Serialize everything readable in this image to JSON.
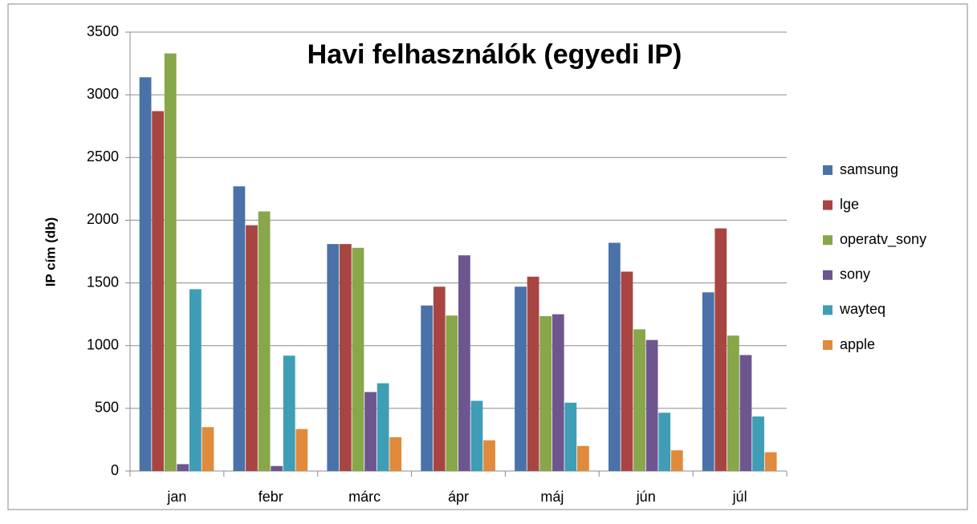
{
  "chart_data": {
    "type": "bar",
    "title": "Havi  felhasználók (egyedi IP)",
    "y_label": "IP cím (db)",
    "categories": [
      "jan",
      "febr",
      "márc",
      "ápr",
      "máj",
      "jún",
      "júl"
    ],
    "series": [
      {
        "name": "samsung",
        "color": "#4a72a8",
        "values": [
          3140,
          2270,
          1810,
          1320,
          1470,
          1820,
          1425
        ]
      },
      {
        "name": "lge",
        "color": "#a84542",
        "values": [
          2870,
          1960,
          1810,
          1470,
          1550,
          1590,
          1935
        ]
      },
      {
        "name": "operatv_sony",
        "color": "#88a64a",
        "values": [
          3330,
          2070,
          1780,
          1240,
          1235,
          1130,
          1080
        ]
      },
      {
        "name": "sony",
        "color": "#6d5690",
        "values": [
          55,
          40,
          630,
          1720,
          1250,
          1045,
          925
        ]
      },
      {
        "name": "wayteq",
        "color": "#3f9db5",
        "values": [
          1450,
          920,
          700,
          560,
          545,
          465,
          435
        ]
      },
      {
        "name": "apple",
        "color": "#e08a3c",
        "values": [
          350,
          335,
          270,
          245,
          200,
          165,
          150
        ]
      }
    ],
    "ylim": [
      0,
      3500
    ],
    "yticks": [
      0,
      500,
      1000,
      1500,
      2000,
      2500,
      3000,
      3500
    ],
    "grid": true,
    "legend": "right"
  }
}
